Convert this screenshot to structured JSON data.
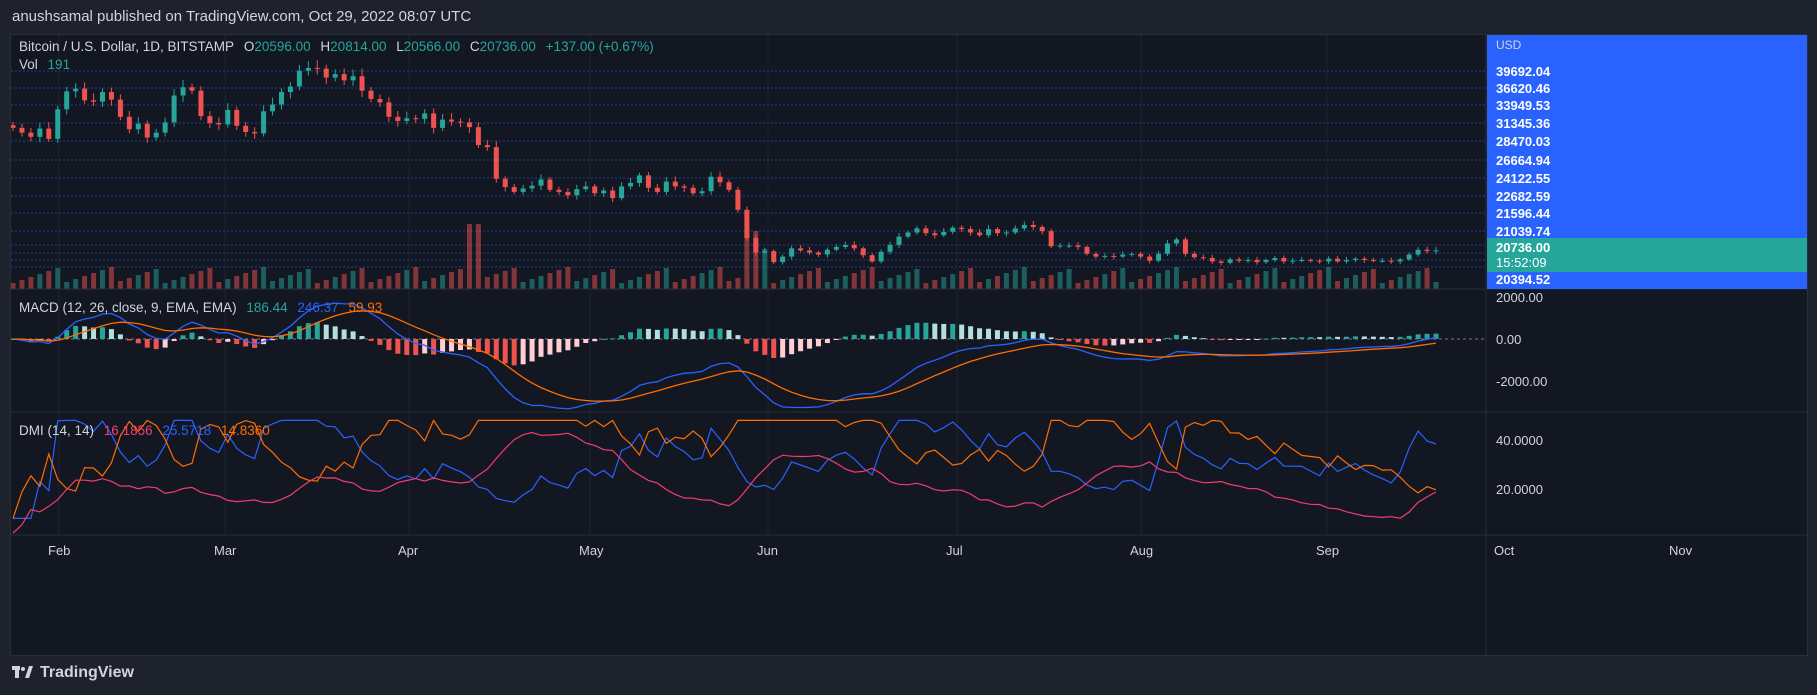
{
  "header": {
    "publisher": "anushsamal published on TradingView.com, Oct 29, 2022 08:07 UTC"
  },
  "legend": {
    "symbol": "Bitcoin / U.S. Dollar, 1D, BITSTAMP",
    "open_label": "O",
    "open": "20596.00",
    "high_label": "H",
    "high": "20814.00",
    "low_label": "L",
    "low": "20566.00",
    "close_label": "C",
    "close": "20736.00",
    "change": "+137.00 (+0.67%)",
    "vol_label": "Vol",
    "vol": "191"
  },
  "macd_legend": {
    "label": "MACD (12, 26, close, 9, EMA, EMA)",
    "v1": "186.44",
    "v2": "246.37",
    "v3": "59.93"
  },
  "dmi_legend": {
    "label": "DMI (14, 14)",
    "v1": "16.1856",
    "v2": "25.5718",
    "v3": "14.8360"
  },
  "footer": {
    "brand": "TradingView"
  },
  "colors": {
    "up": "#26a69a",
    "down": "#ef5350",
    "macd": "#2962ff",
    "signal": "#ff6d00",
    "dmi_plus": "#2962ff",
    "dmi_minus": "#ff6d00",
    "adx": "#f23d6d",
    "price_tag_blue": "#2962ff",
    "price_tag_current": "#26a69a"
  },
  "chart_data": {
    "type": "candlestick",
    "currency": "USD",
    "x_labels": [
      "Feb",
      "Mar",
      "Apr",
      "May",
      "Jun",
      "Jul",
      "Aug",
      "Sep",
      "Oct",
      "Nov"
    ],
    "price_axis": {
      "levels": [
        "39692.04",
        "36620.46",
        "33949.53",
        "31345.36",
        "28470.03",
        "26664.94",
        "24122.55",
        "22682.59",
        "21596.44",
        "21039.74"
      ],
      "current": "20736.00",
      "countdown": "15:52:09",
      "low_tag": "20394.52"
    },
    "macd_axis": [
      "2000.00",
      "0.00",
      "-2000.00"
    ],
    "dmi_axis": [
      "40.0000",
      "20.0000"
    ],
    "close_series": [
      38500,
      37800,
      37200,
      38400,
      36900,
      41200,
      43800,
      44200,
      42500,
      42300,
      43700,
      42600,
      40100,
      38300,
      39100,
      37100,
      37800,
      39300,
      43200,
      44400,
      43900,
      40200,
      39200,
      39000,
      41100,
      38800,
      37900,
      37700,
      40900,
      41900,
      43700,
      44500,
      46800,
      47200,
      47100,
      45800,
      46300,
      45400,
      46000,
      43900,
      42700,
      42200,
      40100,
      39500,
      39900,
      39800,
      40600,
      38500,
      39700,
      39400,
      39300,
      38600,
      36000,
      35700,
      31100,
      29900,
      29200,
      29700,
      30100,
      31000,
      29500,
      29200,
      28700,
      29600,
      30000,
      29000,
      29400,
      28300,
      30000,
      30500,
      31600,
      29800,
      29200,
      30700,
      30000,
      29800,
      29000,
      29300,
      31400,
      30600,
      29500,
      26600,
      22500,
      20400,
      20600,
      19000,
      19800,
      21000,
      20700,
      20400,
      20100,
      20800,
      21200,
      21500,
      21000,
      20000,
      19100,
      20500,
      21500,
      22700,
      23300,
      23900,
      23200,
      22900,
      23400,
      24000,
      23800,
      23300,
      22900,
      23800,
      23200,
      23300,
      23900,
      24400,
      24100,
      23500,
      21300,
      21400,
      21400,
      21200,
      20200,
      19800,
      19900,
      19800,
      20100,
      20200,
      19800,
      19200,
      20200,
      21700,
      22300,
      20200,
      19700,
      19600,
      19100,
      18900,
      19400,
      19200,
      19300,
      19000,
      19300,
      19600,
      19100,
      19200,
      19300,
      19200,
      19100,
      19500,
      19100,
      19300,
      19500,
      19300,
      19200,
      19200,
      19100,
      19400,
      20100,
      20800,
      20600,
      20700
    ]
  }
}
